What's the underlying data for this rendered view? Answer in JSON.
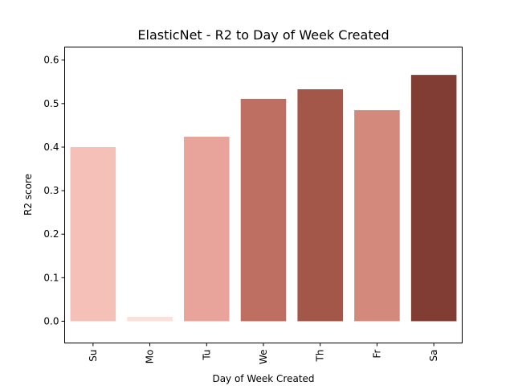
{
  "chart_data": {
    "type": "bar",
    "title": "ElasticNet - R2 to Day of Week Created",
    "xlabel": "Day of Week Created",
    "ylabel": "R2 score",
    "categories": [
      "Su",
      "Mo",
      "Tu",
      "We",
      "Th",
      "Fr",
      "Sa"
    ],
    "values": [
      0.4,
      0.01,
      0.424,
      0.511,
      0.533,
      0.485,
      0.566
    ],
    "colors": [
      "#f4c0b8",
      "#fce0da",
      "#e8a49a",
      "#bf6e62",
      "#a25749",
      "#d4897d",
      "#813c33"
    ],
    "ylim": [
      -0.05,
      0.63
    ],
    "yticks": [
      "0.0",
      "0.1",
      "0.2",
      "0.3",
      "0.4",
      "0.5",
      "0.6"
    ],
    "x_tick_rotation": "vertical",
    "grid": false,
    "legend": "none"
  }
}
